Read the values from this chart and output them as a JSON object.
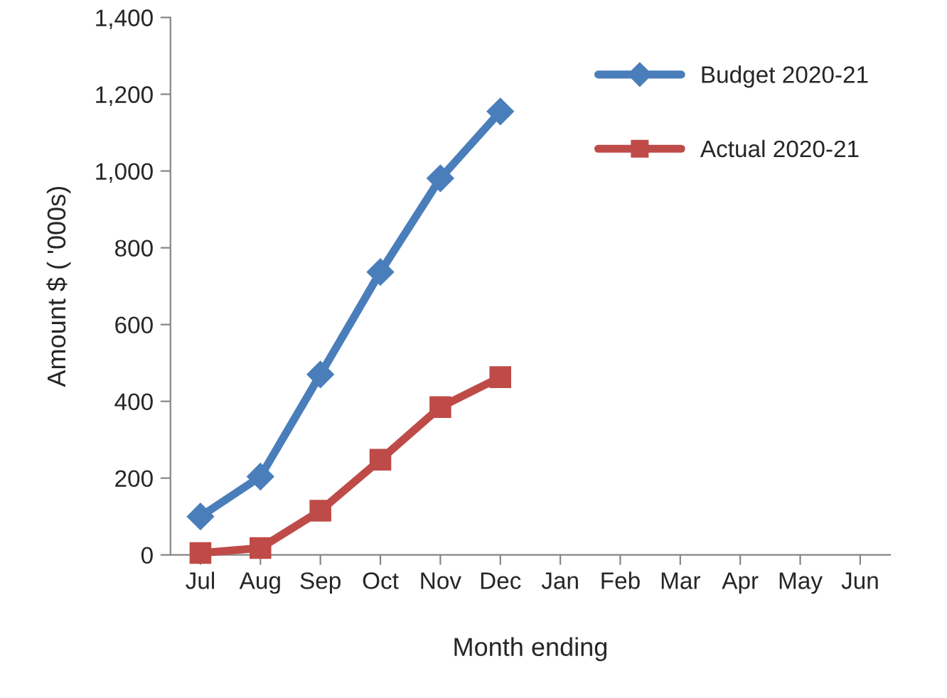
{
  "chart_data": {
    "type": "line",
    "xlabel": "Month ending",
    "ylabel": "Amount $ ( '000s)",
    "categories": [
      "Jul",
      "Aug",
      "Sep",
      "Oct",
      "Nov",
      "Dec",
      "Jan",
      "Feb",
      "Mar",
      "Apr",
      "May",
      "Jun"
    ],
    "series": [
      {
        "name": "Budget 2020-21",
        "color": "#4a7ebb",
        "marker": "diamond",
        "values": [
          100,
          204,
          470,
          737,
          981,
          1155,
          null,
          null,
          null,
          null,
          null,
          null
        ]
      },
      {
        "name": "Actual 2020-21",
        "color": "#be4b48",
        "marker": "square",
        "values": [
          5,
          18,
          115,
          248,
          385,
          463,
          null,
          null,
          null,
          null,
          null,
          null
        ]
      }
    ],
    "ylim": [
      0,
      1400
    ],
    "yticks": [
      {
        "value": 0,
        "label": "0"
      },
      {
        "value": 200,
        "label": "200"
      },
      {
        "value": 400,
        "label": "400"
      },
      {
        "value": 600,
        "label": "600"
      },
      {
        "value": 800,
        "label": "800"
      },
      {
        "value": 1000,
        "label": "1,000"
      },
      {
        "value": 1200,
        "label": "1,200"
      },
      {
        "value": 1400,
        "label": "1,400"
      }
    ],
    "grid": false,
    "legend": "top right"
  }
}
